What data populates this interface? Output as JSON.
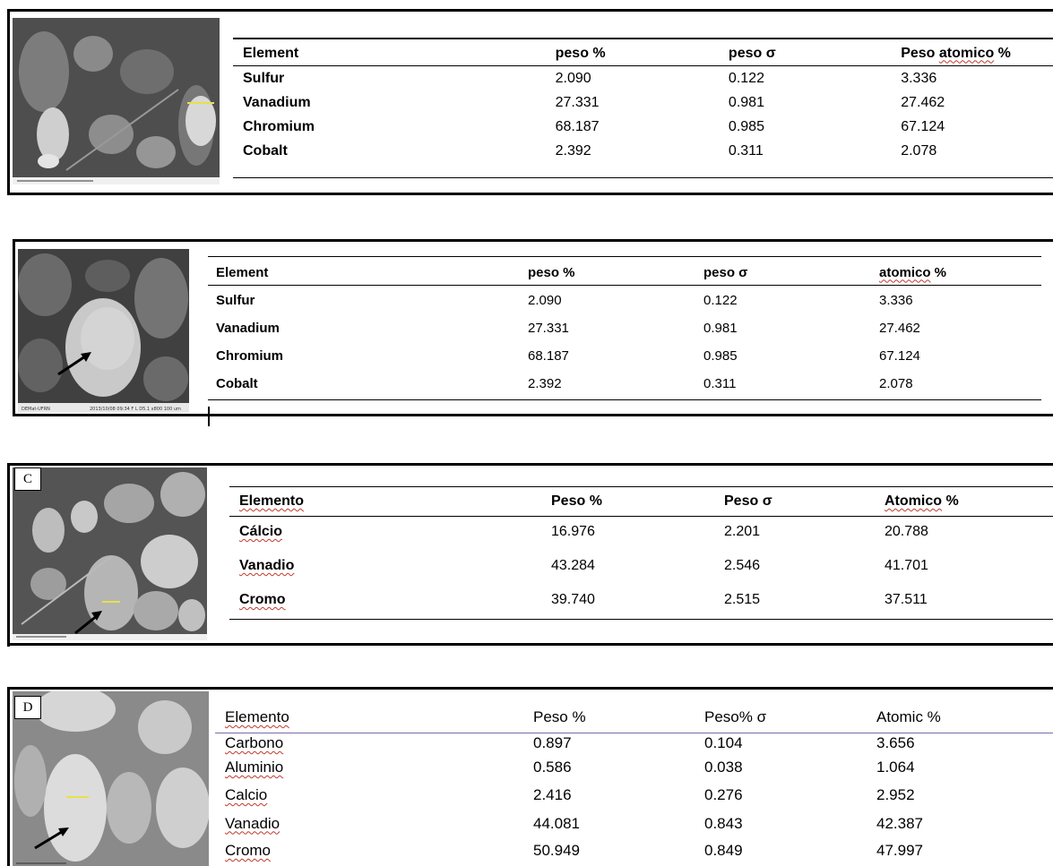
{
  "panels": [
    {
      "label": "",
      "headers": [
        "Element",
        "peso %",
        "peso σ",
        "Peso atomico %"
      ],
      "rows": [
        [
          "Sulfur",
          "2.090",
          "0.122",
          "3.336"
        ],
        [
          "Vanadium",
          "27.331",
          "0.981",
          "27.462"
        ],
        [
          "Chromium",
          "68.187",
          "0.985",
          "67.124"
        ],
        [
          "Cobalt",
          "2.392",
          "0.311",
          "2.078"
        ]
      ]
    },
    {
      "label": "",
      "headers": [
        "Element",
        "peso %",
        "peso σ",
        "atomico %"
      ],
      "rows": [
        [
          "Sulfur",
          "2.090",
          "0.122",
          "3.336"
        ],
        [
          "Vanadium",
          "27.331",
          "0.981",
          "27.462"
        ],
        [
          "Chromium",
          "68.187",
          "0.985",
          "67.124"
        ],
        [
          "Cobalt",
          "2.392",
          "0.311",
          "2.078"
        ]
      ]
    },
    {
      "label": "C",
      "headers": [
        "Elemento",
        "Peso %",
        "Peso σ",
        "Atomico %"
      ],
      "rows": [
        [
          "Cálcio",
          "16.976",
          "2.201",
          "20.788"
        ],
        [
          "Vanadio",
          "43.284",
          "2.546",
          "41.701"
        ],
        [
          "Cromo",
          "39.740",
          "2.515",
          "37.511"
        ]
      ]
    },
    {
      "label": "D",
      "headers": [
        "Elemento",
        "Peso %",
        "Peso% σ",
        "Atomic %"
      ],
      "rows": [
        [
          "Carbono",
          "0.897",
          "0.104",
          "3.656"
        ],
        [
          "Aluminio",
          "0.586",
          "0.038",
          "1.064"
        ],
        [
          "Calcio",
          "2.416",
          "0.276",
          "2.952"
        ],
        [
          "Vanadio",
          "44.081",
          "0.843",
          "42.387"
        ],
        [
          "Cromo",
          "50.949",
          "0.849",
          "47.997"
        ]
      ]
    }
  ]
}
